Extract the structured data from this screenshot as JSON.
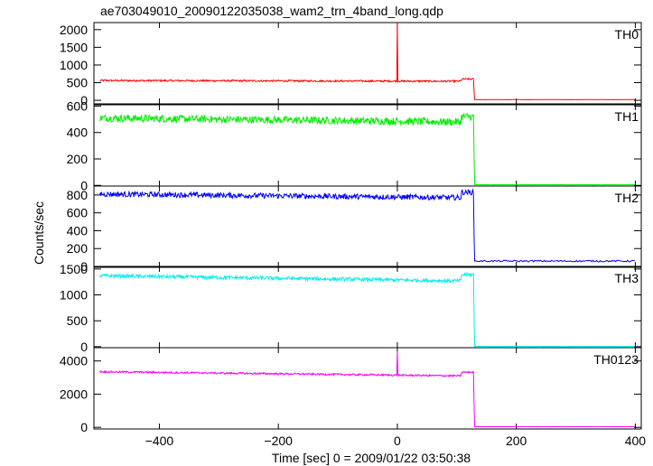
{
  "chart_data": {
    "type": "line",
    "title": "ae703049010_20090122035038_wam2_trn_4band_long.qdp",
    "xlabel": "Time [sec] 0 = 2009/01/22 03:50:38",
    "ylabel": "Counts/sec",
    "xlim": [
      -510,
      410
    ],
    "x_ticks": [
      -400,
      -200,
      0,
      200,
      400
    ],
    "x_tick_labels": [
      "−400",
      "−200",
      "0",
      "200",
      "400"
    ],
    "drop_time": 128,
    "series": [
      {
        "name": "TH0",
        "color": "#ff0000",
        "ylim": [
          -100,
          2200
        ],
        "yticks": [
          0,
          500,
          1000,
          1500,
          2000
        ],
        "level_start": 560,
        "level_end": 540,
        "level_end_rise": 600,
        "noise": 25,
        "post": 20,
        "spike": {
          "x": 0,
          "y": 2200
        }
      },
      {
        "name": "TH1",
        "color": "#00ee00",
        "ylim": [
          -5,
          610
        ],
        "yticks": [
          0,
          200,
          400,
          600
        ],
        "level_start": 510,
        "level_end": 480,
        "level_end_rise": 520,
        "noise": 28,
        "post": 5
      },
      {
        "name": "TH2",
        "color": "#0000ff",
        "ylim": [
          -10,
          900
        ],
        "yticks": [
          0,
          200,
          400,
          600,
          800
        ],
        "level_start": 810,
        "level_end": 770,
        "level_end_rise": 830,
        "noise": 30,
        "post": 60
      },
      {
        "name": "TH3",
        "color": "#00eeee",
        "ylim": [
          -20,
          1550
        ],
        "yticks": [
          0,
          500,
          1000,
          1500
        ],
        "level_start": 1370,
        "level_end": 1270,
        "level_end_rise": 1390,
        "noise": 35,
        "post": 5
      },
      {
        "name": "TH0123",
        "color": "#ff00ff",
        "ylim": [
          -100,
          4800
        ],
        "yticks": [
          0,
          2000,
          4000
        ],
        "level_start": 3350,
        "level_end": 3100,
        "level_end_rise": 3320,
        "noise": 55,
        "post": 40,
        "spike": {
          "x": 0,
          "y": 4600
        }
      }
    ],
    "grid": false,
    "legend": "panel labels top-right"
  }
}
